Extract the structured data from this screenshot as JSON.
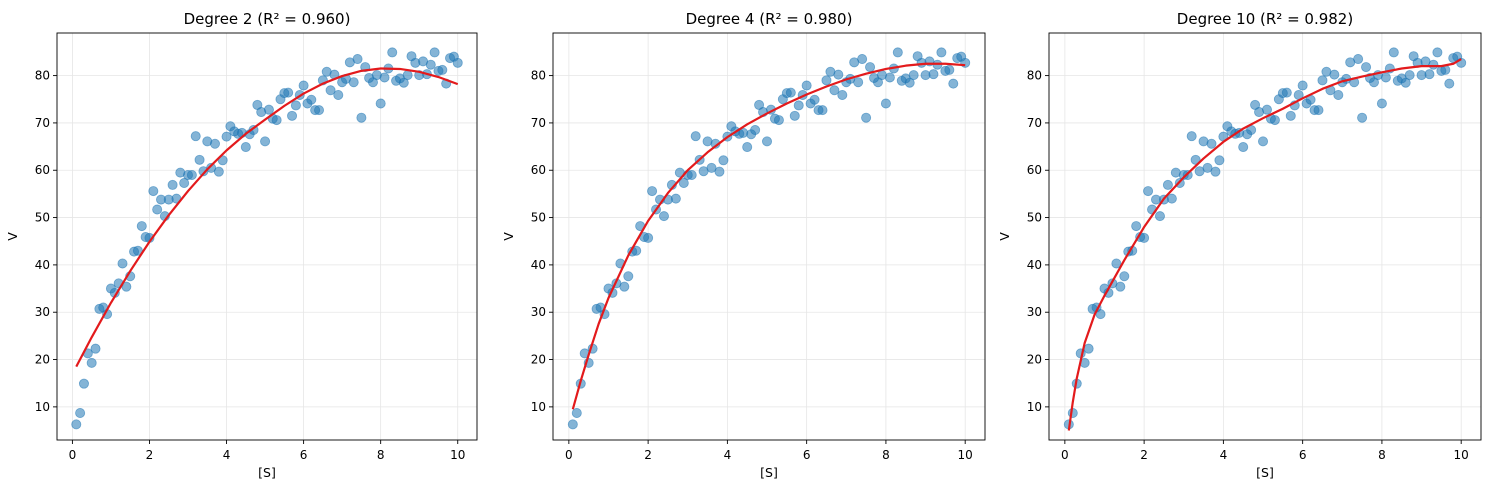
{
  "chart_data": [
    {
      "type": "scatter",
      "title": "Degree 2 (R² = 0.960)",
      "xlabel": "[S]",
      "ylabel": "V",
      "xlim": [
        -0.4,
        10.5
      ],
      "ylim": [
        3,
        89
      ],
      "xticks": [
        0,
        2,
        4,
        6,
        8,
        10
      ],
      "yticks": [
        10,
        20,
        30,
        40,
        50,
        60,
        70,
        80
      ],
      "grid": true,
      "scatter_color": "#1f77b4",
      "fit_color": "#e31a1c",
      "fit_curve": {
        "x": [
          0.1,
          0.5,
          1,
          1.5,
          2,
          2.5,
          3,
          3.5,
          4,
          4.5,
          5,
          5.5,
          6,
          6.5,
          7,
          7.5,
          8,
          8.5,
          9,
          9.5,
          10
        ],
        "y": [
          18.5,
          24.7,
          32.0,
          38.7,
          44.9,
          50.5,
          55.6,
          60.2,
          64.2,
          67.7,
          70.7,
          73.6,
          76.2,
          78.3,
          79.9,
          81.0,
          81.5,
          81.4,
          80.8,
          79.7,
          78.2
        ]
      }
    },
    {
      "type": "scatter",
      "title": "Degree 4 (R² = 0.980)",
      "xlabel": "[S]",
      "ylabel": "V",
      "xlim": [
        -0.4,
        10.5
      ],
      "ylim": [
        3,
        89
      ],
      "xticks": [
        0,
        2,
        4,
        6,
        8,
        10
      ],
      "yticks": [
        10,
        20,
        30,
        40,
        50,
        60,
        70,
        80
      ],
      "grid": true,
      "scatter_color": "#1f77b4",
      "fit_color": "#e31a1c",
      "fit_curve": {
        "x": [
          0.1,
          0.3,
          0.5,
          0.75,
          1,
          1.5,
          2,
          2.5,
          3,
          3.5,
          4,
          4.5,
          5,
          5.5,
          6,
          6.5,
          7,
          7.5,
          8,
          8.5,
          9,
          9.5,
          10
        ],
        "y": [
          9.5,
          15.5,
          21.0,
          27.5,
          33.0,
          42.0,
          49.3,
          55.2,
          60.0,
          63.8,
          67.0,
          69.7,
          72.0,
          74.1,
          76.0,
          77.7,
          79.2,
          80.4,
          81.4,
          82.1,
          82.5,
          82.5,
          82.2
        ]
      }
    },
    {
      "type": "scatter",
      "title": "Degree 10 (R² = 0.982)",
      "xlabel": "[S]",
      "ylabel": "V",
      "xlim": [
        -0.4,
        10.5
      ],
      "ylim": [
        3,
        89
      ],
      "xticks": [
        0,
        2,
        4,
        6,
        8,
        10
      ],
      "yticks": [
        10,
        20,
        30,
        40,
        50,
        60,
        70,
        80
      ],
      "grid": true,
      "scatter_color": "#1f77b4",
      "fit_color": "#e31a1c",
      "fit_curve": {
        "x": [
          0.1,
          0.2,
          0.3,
          0.5,
          0.75,
          1,
          1.5,
          2,
          2.5,
          3,
          3.5,
          4,
          4.5,
          5,
          5.5,
          6,
          6.5,
          7,
          7.5,
          8,
          8.5,
          9,
          9.5,
          9.8,
          10
        ],
        "y": [
          5.0,
          11.0,
          16.0,
          23.5,
          29.5,
          33.5,
          41.0,
          48.0,
          54.0,
          58.5,
          62.5,
          66.0,
          68.8,
          71.0,
          73.0,
          75.2,
          77.2,
          78.8,
          79.8,
          80.7,
          81.5,
          82.0,
          82.0,
          82.5,
          83.5
        ]
      }
    }
  ],
  "scatter_points": {
    "x": [
      0.1,
      0.2,
      0.3,
      0.4,
      0.5,
      0.6,
      0.7,
      0.8,
      0.9,
      1.0,
      1.1,
      1.2,
      1.3,
      1.4,
      1.5,
      1.6,
      1.7,
      1.8,
      1.9,
      2.0,
      2.1,
      2.2,
      2.3,
      2.4,
      2.5,
      2.6,
      2.7,
      2.8,
      2.9,
      3.0,
      3.1,
      3.2,
      3.3,
      3.4,
      3.5,
      3.6,
      3.7,
      3.8,
      3.9,
      4.0,
      4.1,
      4.2,
      4.3,
      4.4,
      4.5,
      4.6,
      4.7,
      4.8,
      4.9,
      5.0,
      5.1,
      5.2,
      5.3,
      5.4,
      5.5,
      5.6,
      5.7,
      5.8,
      5.9,
      6.0,
      6.1,
      6.2,
      6.3,
      6.4,
      6.5,
      6.6,
      6.7,
      6.8,
      6.9,
      7.0,
      7.1,
      7.2,
      7.3,
      7.4,
      7.5,
      7.6,
      7.7,
      7.8,
      7.9,
      8.0,
      8.1,
      8.2,
      8.3,
      8.4,
      8.5,
      8.6,
      8.7,
      8.8,
      8.9,
      9.0,
      9.1,
      9.2,
      9.3,
      9.4,
      9.5,
      9.6,
      9.7,
      9.8,
      9.9,
      10.0
    ],
    "y": [
      6.3,
      8.7,
      14.9,
      21.3,
      19.3,
      22.3,
      30.7,
      31.0,
      29.6,
      35.0,
      34.1,
      36.1,
      40.3,
      35.4,
      37.6,
      42.8,
      43.0,
      48.2,
      45.9,
      45.7,
      55.6,
      51.7,
      53.8,
      50.3,
      53.8,
      56.9,
      54.0,
      59.5,
      57.3,
      59.0,
      59.0,
      67.2,
      62.2,
      59.8,
      66.1,
      60.5,
      65.6,
      59.7,
      62.1,
      67.1,
      69.3,
      68.2,
      67.7,
      67.9,
      64.9,
      67.6,
      68.5,
      73.8,
      72.3,
      66.1,
      72.8,
      70.9,
      70.6,
      75.0,
      76.3,
      76.4,
      71.5,
      73.7,
      75.9,
      77.9,
      74.1,
      74.9,
      72.7,
      72.7,
      79.0,
      80.8,
      76.9,
      80.2,
      75.9,
      78.6,
      79.3,
      82.8,
      78.6,
      83.5,
      71.1,
      81.8,
      79.5,
      78.6,
      80.1,
      74.1,
      79.6,
      81.5,
      84.9,
      78.9,
      79.4,
      78.5,
      80.1,
      84.1,
      82.7,
      80.1,
      83.0,
      80.3,
      82.3,
      84.9,
      81.0,
      81.2,
      78.3,
      83.7,
      84.0,
      82.7
    ]
  },
  "colors": {
    "scatter": "#1f77b4",
    "fit": "#e31a1c"
  }
}
